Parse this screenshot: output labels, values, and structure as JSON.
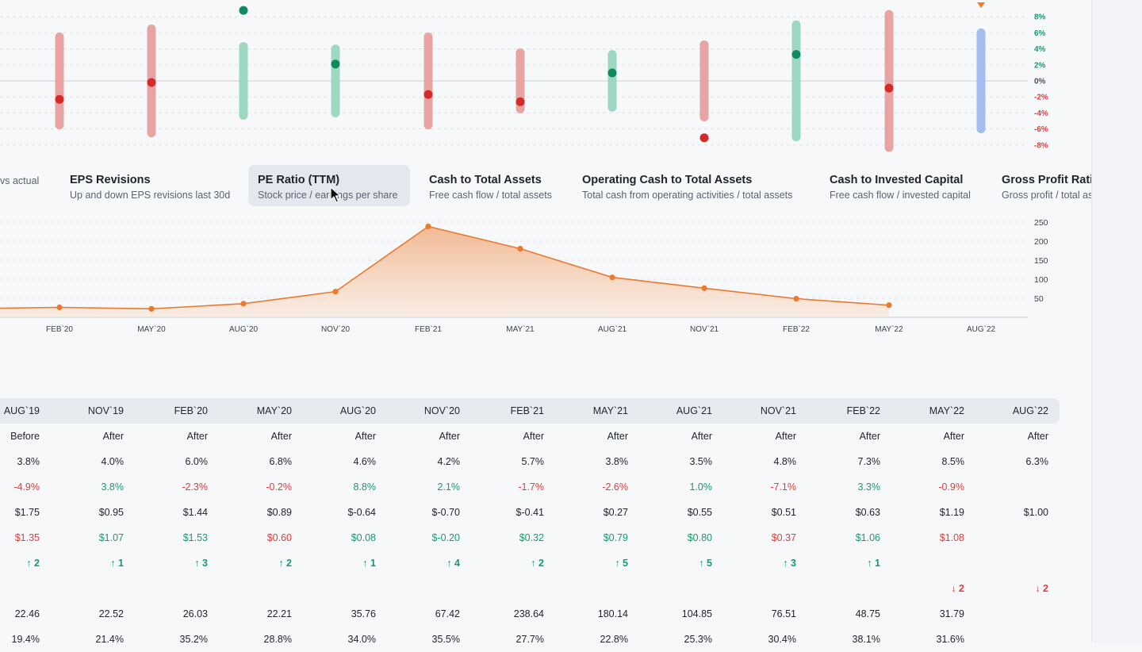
{
  "range_chart": {
    "y_ticks": [
      "8%",
      "6%",
      "4%",
      "2%",
      "0%",
      "-2%",
      "-4%",
      "-6%",
      "-8%"
    ],
    "bars": [
      {
        "low": -5.5,
        "high": 5.5,
        "point": -2.3,
        "color": "#e8a3a3",
        "point_color": "#d42a2a"
      },
      {
        "low": -6.5,
        "high": 6.5,
        "point": -0.2,
        "color": "#e8a3a3",
        "point_color": "#d42a2a"
      },
      {
        "low": -4.3,
        "high": 4.3,
        "point": 8.8,
        "color": "#9dd8c1",
        "point_color": "#0f8a5f"
      },
      {
        "low": -4.0,
        "high": 4.0,
        "point": 2.1,
        "color": "#9dd8c1",
        "point_color": "#0f8a5f"
      },
      {
        "low": -5.5,
        "high": 5.5,
        "point": -1.7,
        "color": "#e8a3a3",
        "point_color": "#d42a2a"
      },
      {
        "low": -3.5,
        "high": 3.5,
        "point": -2.6,
        "color": "#e8a3a3",
        "point_color": "#d42a2a"
      },
      {
        "low": -3.3,
        "high": 3.3,
        "point": 1.0,
        "color": "#9dd8c1",
        "point_color": "#0f8a5f"
      },
      {
        "low": -4.5,
        "high": 4.5,
        "point": -7.1,
        "color": "#e8a3a3",
        "point_color": "#d42a2a"
      },
      {
        "low": -7.0,
        "high": 7.0,
        "point": 3.3,
        "color": "#9dd8c1",
        "point_color": "#0f8a5f"
      },
      {
        "low": -8.3,
        "high": 8.3,
        "point": -0.9,
        "color": "#e8a3a3",
        "point_color": "#d42a2a"
      },
      {
        "low": -6.0,
        "high": 6.0,
        "point": null,
        "color": "#a4bdf0",
        "point_color": "#f07a2a"
      }
    ]
  },
  "tabs": [
    {
      "title": "",
      "sub": "vs actual"
    },
    {
      "title": "EPS Revisions",
      "sub": "Up and down EPS revisions last 30d"
    },
    {
      "title": "PE Ratio (TTM)",
      "sub": "Stock price / earnings per share"
    },
    {
      "title": "Cash to Total Assets",
      "sub": "Free cash flow / total assets"
    },
    {
      "title": "Operating Cash to Total Assets",
      "sub": "Total cash from operating activities / total assets"
    },
    {
      "title": "Cash to Invested Capital",
      "sub": "Free cash flow / invested capital"
    },
    {
      "title": "Gross Profit Ratio",
      "sub": "Gross profit / total assets"
    }
  ],
  "chart_data": {
    "type": "area",
    "x": [
      "NOV`19",
      "FEB`20",
      "MAY`20",
      "AUG`20",
      "NOV`20",
      "FEB`21",
      "MAY`21",
      "AUG`21",
      "NOV`21",
      "FEB`22",
      "MAY`22"
    ],
    "series": [
      {
        "values": [
          22.52,
          26.03,
          22.21,
          35.76,
          67.42,
          238.64,
          180.14,
          104.85,
          76.51,
          48.75,
          31.79
        ]
      }
    ],
    "x_tick_labels": [
      "FEB`20",
      "MAY`20",
      "AUG`20",
      "NOV`20",
      "FEB`21",
      "MAY`21",
      "AUG`21",
      "NOV`21",
      "FEB`22",
      "MAY`22",
      "AUG`22"
    ],
    "y_ticks": [
      50,
      100,
      150,
      200,
      250
    ],
    "ylim": [
      0,
      250
    ],
    "color": "#ea7a30"
  },
  "table": {
    "columns": [
      "AUG`19",
      "NOV`19",
      "FEB`20",
      "MAY`20",
      "AUG`20",
      "NOV`20",
      "FEB`21",
      "MAY`21",
      "AUG`21",
      "NOV`21",
      "FEB`22",
      "MAY`22",
      "AUG`22"
    ],
    "rows": [
      {
        "cells": [
          "Before",
          "After",
          "After",
          "After",
          "After",
          "After",
          "After",
          "After",
          "After",
          "After",
          "After",
          "After",
          "After"
        ],
        "colors": [
          "dark",
          "dark",
          "dark",
          "dark",
          "dark",
          "dark",
          "dark",
          "dark",
          "dark",
          "dark",
          "dark",
          "dark",
          "dark"
        ]
      },
      {
        "cells": [
          "3.8%",
          "4.0%",
          "6.0%",
          "6.8%",
          "4.6%",
          "4.2%",
          "5.7%",
          "3.8%",
          "3.5%",
          "4.8%",
          "7.3%",
          "8.5%",
          "6.3%"
        ],
        "colors": [
          "dark",
          "dark",
          "dark",
          "dark",
          "dark",
          "dark",
          "dark",
          "dark",
          "dark",
          "dark",
          "dark",
          "dark",
          "dark"
        ]
      },
      {
        "cells": [
          "-4.9%",
          "3.8%",
          "-2.3%",
          "-0.2%",
          "8.8%",
          "2.1%",
          "-1.7%",
          "-2.6%",
          "1.0%",
          "-7.1%",
          "3.3%",
          "-0.9%",
          ""
        ],
        "colors": [
          "red",
          "green",
          "red",
          "red",
          "green",
          "green",
          "red",
          "red",
          "green",
          "red",
          "green",
          "red",
          "dark"
        ]
      },
      {
        "cells": [
          "$1.75",
          "$0.95",
          "$1.44",
          "$0.89",
          "$-0.64",
          "$-0.70",
          "$-0.41",
          "$0.27",
          "$0.55",
          "$0.51",
          "$0.63",
          "$1.19",
          "$1.00"
        ],
        "colors": [
          "dark",
          "dark",
          "dark",
          "dark",
          "dark",
          "dark",
          "dark",
          "dark",
          "dark",
          "dark",
          "dark",
          "dark",
          "dark"
        ]
      },
      {
        "cells": [
          "$1.35",
          "$1.07",
          "$1.53",
          "$0.60",
          "$0.08",
          "$-0.20",
          "$0.32",
          "$0.79",
          "$0.80",
          "$0.37",
          "$1.06",
          "$1.08",
          ""
        ],
        "colors": [
          "red",
          "green",
          "green",
          "red",
          "green",
          "green",
          "green",
          "green",
          "green",
          "red",
          "green",
          "red",
          "dark"
        ]
      },
      {
        "cells": [
          "↑ 2",
          "↑ 1",
          "↑ 3",
          "↑ 2",
          "↑ 1",
          "↑ 4",
          "↑ 2",
          "↑ 5",
          "↑ 5",
          "↑ 3",
          "↑ 1",
          "",
          ""
        ],
        "colors": [
          "up",
          "up",
          "up",
          "up",
          "up",
          "up",
          "up",
          "up",
          "up",
          "up",
          "up",
          "dark",
          "dark"
        ]
      },
      {
        "cells": [
          "",
          "",
          "",
          "",
          "",
          "",
          "",
          "",
          "",
          "",
          "",
          "↓ 2",
          "↓ 2"
        ],
        "colors": [
          "dark",
          "dark",
          "dark",
          "dark",
          "dark",
          "dark",
          "dark",
          "dark",
          "dark",
          "dark",
          "dark",
          "down",
          "down"
        ]
      },
      {
        "cells": [
          "22.46",
          "22.52",
          "26.03",
          "22.21",
          "35.76",
          "67.42",
          "238.64",
          "180.14",
          "104.85",
          "76.51",
          "48.75",
          "31.79",
          ""
        ],
        "colors": [
          "dark",
          "dark",
          "dark",
          "dark",
          "dark",
          "dark",
          "dark",
          "dark",
          "dark",
          "dark",
          "dark",
          "dark",
          "dark"
        ]
      },
      {
        "cells": [
          "19.4%",
          "21.4%",
          "35.2%",
          "28.8%",
          "34.0%",
          "35.5%",
          "27.7%",
          "22.8%",
          "25.3%",
          "30.4%",
          "38.1%",
          "31.6%",
          ""
        ],
        "colors": [
          "dark",
          "dark",
          "dark",
          "dark",
          "dark",
          "dark",
          "dark",
          "dark",
          "dark",
          "dark",
          "dark",
          "dark",
          "dark"
        ]
      }
    ]
  }
}
